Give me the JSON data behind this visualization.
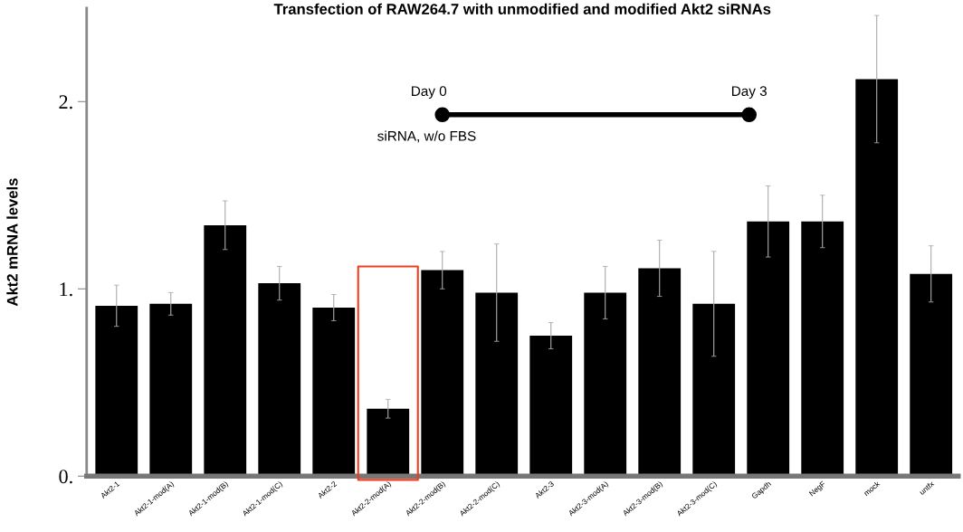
{
  "chart_data": {
    "type": "bar",
    "title": "Transfection of RAW264.7 with unmodified and modified Akt2 siRNAs",
    "ylabel": "Akt2 mRNA levels",
    "categories": [
      "Akt2-1",
      "Akt2-1-mod(A)",
      "Akt2-1-mod(B)",
      "Akt2-1-mod(C)",
      "Akt2-2",
      "Akt2-2-mod(A)",
      "Akt2-2-mod(B)",
      "Akt2-2-mod(C)",
      "Akt2-3",
      "Akt2-3-mod(A)",
      "Akt2-3-mod(B)",
      "Akt2-3-mod(C)",
      "Gapdh",
      "NegF",
      "mock",
      "untfx"
    ],
    "values": [
      0.91,
      0.92,
      1.34,
      1.03,
      0.9,
      0.36,
      1.1,
      0.98,
      0.75,
      0.98,
      1.11,
      0.92,
      1.36,
      1.36,
      2.12,
      1.08
    ],
    "errors": [
      0.11,
      0.06,
      0.13,
      0.09,
      0.07,
      0.05,
      0.1,
      0.26,
      0.07,
      0.14,
      0.15,
      0.28,
      0.19,
      0.14,
      0.34,
      0.15
    ],
    "color": "#000000",
    "ylim": [
      0,
      2.5
    ],
    "yticks": [
      {
        "value": 0,
        "label": "0."
      },
      {
        "value": 1,
        "label": "1."
      },
      {
        "value": 2,
        "label": "2."
      }
    ],
    "annotations": [
      "Day 0",
      "Day 3",
      "siRNA, w/o FBS"
    ],
    "grid": false
  }
}
